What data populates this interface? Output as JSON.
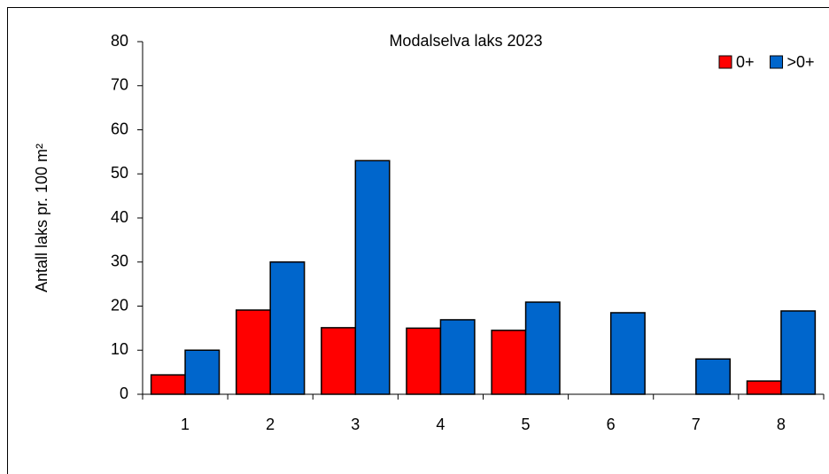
{
  "chart_data": {
    "type": "bar",
    "title": "Modalselva laks 2023",
    "y_label": "Antall laks pr. 100 m²",
    "categories": [
      "1",
      "2",
      "3",
      "4",
      "5",
      "6",
      "7",
      "8"
    ],
    "series": [
      {
        "name": "0+",
        "color": "#ff0000",
        "values": [
          4.4,
          19.1,
          15.1,
          15,
          14.5,
          0,
          0,
          3
        ]
      },
      {
        "name": ">0+",
        "color": "#0066cc",
        "values": [
          10,
          30,
          53,
          16.9,
          20.9,
          18.5,
          8,
          18.9
        ]
      }
    ],
    "ylim": [
      0,
      80
    ],
    "yticks": [
      0,
      10,
      20,
      30,
      40,
      50,
      60,
      70,
      80
    ],
    "grid": false,
    "legend": "top-right"
  }
}
